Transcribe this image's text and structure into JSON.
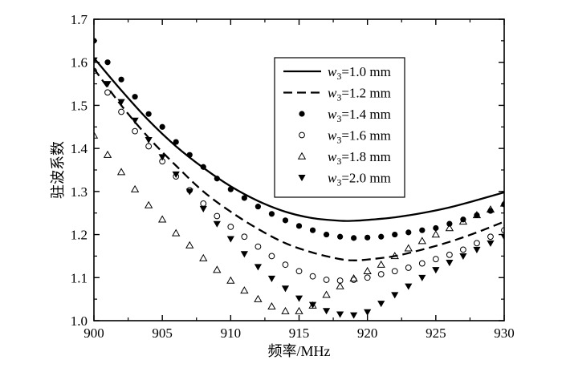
{
  "chart_data": {
    "type": "line",
    "xlabel": "频率/MHz",
    "ylabel": "驻波系数",
    "xlim": [
      900,
      930
    ],
    "ylim": [
      1.0,
      1.7
    ],
    "xticks": [
      "900",
      "905",
      "910",
      "915",
      "920",
      "925",
      "930"
    ],
    "yticks": [
      "1.0",
      "1.1",
      "1.2",
      "1.3",
      "1.4",
      "1.5",
      "1.6",
      "1.7"
    ],
    "legend_position": "upper-right",
    "series": [
      {
        "name": "w3=1.0 mm",
        "var": "w",
        "sub": "3",
        "rest": "=1.0 mm",
        "style": "solid",
        "marker": "none",
        "x": [
          900,
          902,
          904,
          906,
          908,
          910,
          912,
          914,
          916,
          918,
          919,
          920,
          922,
          924,
          926,
          928,
          930
        ],
        "y": [
          1.61,
          1.535,
          1.465,
          1.405,
          1.355,
          1.312,
          1.278,
          1.253,
          1.238,
          1.232,
          1.232,
          1.234,
          1.24,
          1.25,
          1.263,
          1.28,
          1.298
        ]
      },
      {
        "name": "w3=1.2 mm",
        "var": "w",
        "sub": "3",
        "rest": "=1.2 mm",
        "style": "dashed",
        "marker": "none",
        "x": [
          900,
          902,
          904,
          906,
          908,
          910,
          912,
          914,
          916,
          918,
          919,
          920,
          922,
          924,
          926,
          928,
          930
        ],
        "y": [
          1.585,
          1.5,
          1.425,
          1.36,
          1.3,
          1.253,
          1.213,
          1.18,
          1.158,
          1.143,
          1.14,
          1.142,
          1.15,
          1.165,
          1.183,
          1.205,
          1.23
        ]
      },
      {
        "name": "w3=1.4 mm",
        "var": "w",
        "sub": "3",
        "rest": "=1.4 mm",
        "style": "none",
        "marker": "filled-circle",
        "x": [
          900,
          901,
          902,
          903,
          904,
          905,
          906,
          907,
          908,
          909,
          910,
          911,
          912,
          913,
          914,
          915,
          916,
          917,
          918,
          919,
          920,
          921,
          922,
          923,
          924,
          925,
          926,
          927,
          928,
          929,
          930
        ],
        "y": [
          1.65,
          1.6,
          1.56,
          1.52,
          1.48,
          1.45,
          1.415,
          1.385,
          1.357,
          1.33,
          1.305,
          1.285,
          1.265,
          1.248,
          1.233,
          1.22,
          1.21,
          1.2,
          1.195,
          1.192,
          1.193,
          1.195,
          1.2,
          1.205,
          1.21,
          1.215,
          1.225,
          1.235,
          1.245,
          1.255,
          1.27
        ]
      },
      {
        "name": "w3=1.6 mm",
        "var": "w",
        "sub": "3",
        "rest": "=1.6 mm",
        "style": "none",
        "marker": "open-circle",
        "x": [
          900,
          901,
          902,
          903,
          904,
          905,
          906,
          907,
          908,
          909,
          910,
          911,
          912,
          913,
          914,
          915,
          916,
          917,
          918,
          919,
          920,
          921,
          922,
          923,
          924,
          925,
          926,
          927,
          928,
          929,
          930
        ],
        "y": [
          1.58,
          1.53,
          1.485,
          1.44,
          1.405,
          1.37,
          1.335,
          1.303,
          1.272,
          1.243,
          1.218,
          1.195,
          1.172,
          1.15,
          1.13,
          1.115,
          1.103,
          1.095,
          1.093,
          1.095,
          1.1,
          1.108,
          1.115,
          1.123,
          1.133,
          1.143,
          1.153,
          1.165,
          1.18,
          1.195,
          1.21
        ]
      },
      {
        "name": "w3=1.8 mm",
        "var": "w",
        "sub": "3",
        "rest": "=1.8 mm",
        "style": "none",
        "marker": "open-triangle",
        "x": [
          900,
          901,
          902,
          903,
          904,
          905,
          906,
          907,
          908,
          909,
          910,
          911,
          912,
          913,
          914,
          915,
          916,
          917,
          918,
          919,
          920,
          921,
          922,
          923,
          924,
          925,
          926,
          927,
          928,
          929,
          930
        ],
        "y": [
          1.43,
          1.385,
          1.345,
          1.305,
          1.268,
          1.235,
          1.203,
          1.175,
          1.145,
          1.118,
          1.093,
          1.07,
          1.05,
          1.033,
          1.022,
          1.022,
          1.035,
          1.06,
          1.08,
          1.098,
          1.115,
          1.13,
          1.15,
          1.168,
          1.185,
          1.2,
          1.215,
          1.23,
          1.245,
          1.258,
          1.272
        ]
      },
      {
        "name": "w3=2.0 mm",
        "var": "w",
        "sub": "3",
        "rest": "=2.0 mm",
        "style": "none",
        "marker": "filled-triangle-down",
        "x": [
          900,
          901,
          902,
          903,
          904,
          905,
          906,
          907,
          908,
          909,
          910,
          911,
          912,
          913,
          914,
          915,
          916,
          917,
          918,
          919,
          920,
          921,
          922,
          923,
          924,
          925,
          926,
          927,
          928,
          929,
          930
        ],
        "y": [
          1.605,
          1.55,
          1.508,
          1.465,
          1.42,
          1.38,
          1.34,
          1.3,
          1.26,
          1.225,
          1.19,
          1.155,
          1.125,
          1.098,
          1.075,
          1.052,
          1.037,
          1.023,
          1.015,
          1.013,
          1.02,
          1.04,
          1.06,
          1.08,
          1.1,
          1.118,
          1.135,
          1.15,
          1.165,
          1.18,
          1.195
        ]
      }
    ]
  }
}
